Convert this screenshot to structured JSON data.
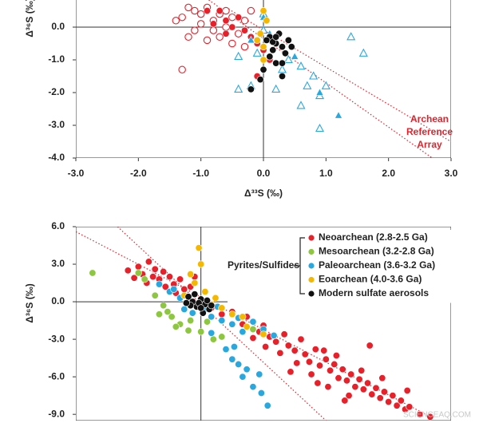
{
  "chart_data": [
    {
      "type": "scatter",
      "x_label": "Δ³³S (‰)",
      "y_label": "Δ³⁶S (‰)",
      "annotation": [
        "Archean",
        "Reference",
        "Array"
      ],
      "xlim": [
        -3.0,
        3.0
      ],
      "ylim": [
        -4.0,
        1.0
      ],
      "xticks": [
        {
          "value": -3,
          "label": "-3.0"
        },
        {
          "value": -2,
          "label": "-2.0"
        },
        {
          "value": -1,
          "label": "-1.0"
        },
        {
          "value": 0,
          "label": "0.0"
        },
        {
          "value": 1,
          "label": "1.0"
        },
        {
          "value": 2,
          "label": "2.0"
        },
        {
          "value": 3,
          "label": "3.0"
        }
      ],
      "yticks": [
        {
          "value": 0,
          "label": "0.0"
        },
        {
          "value": -1,
          "label": "-1.0"
        },
        {
          "value": -2,
          "label": "-2.0"
        },
        {
          "value": -3,
          "label": "-3.0"
        },
        {
          "value": -4,
          "label": "-4.0"
        }
      ],
      "grid": false,
      "zero_axes": true,
      "reference_lines": [
        {
          "color": "#e8202a",
          "x": [
            -1.0,
            2.7
          ],
          "y": [
            1.0,
            -4.0
          ]
        },
        {
          "color": "#e8202a",
          "x": [
            -0.6,
            3.0
          ],
          "y": [
            0.6,
            -3.5
          ]
        }
      ],
      "series": [
        {
          "color": "#e8202a",
          "marker": "circle",
          "filled": false,
          "x": [
            -1.2,
            -1.1,
            -1.3,
            -1.0,
            -0.9,
            -0.8,
            -1.0,
            -0.7,
            -0.6,
            -0.5,
            -0.6,
            -0.8,
            -1.1,
            -1.4,
            -0.3,
            -0.4,
            -0.7,
            -1.3,
            -0.9,
            -0.2,
            -0.5,
            -1.2,
            -0.3
          ],
          "values": [
            0.6,
            0.5,
            0.3,
            0.4,
            0.6,
            0.2,
            0.1,
            0.4,
            0.5,
            0.3,
            0.0,
            -0.1,
            -0.1,
            0.2,
            0.2,
            -0.2,
            -0.3,
            -1.3,
            -0.4,
            0.5,
            -0.5,
            -0.3,
            -0.6
          ]
        },
        {
          "color": "#e8202a",
          "marker": "circle",
          "filled": true,
          "x": [
            -0.9,
            -0.8,
            -0.6,
            -0.5,
            -0.3,
            -0.4,
            -0.2,
            -0.6,
            -0.1,
            -0.7,
            0.0,
            -0.1,
            0.1
          ],
          "values": [
            0.5,
            0.1,
            0.2,
            0.0,
            -0.1,
            0.3,
            -0.3,
            -0.2,
            -0.5,
            0.5,
            -0.7,
            -1.5,
            -1.0
          ]
        },
        {
          "color": "#29a8e0",
          "marker": "triangle",
          "filled": false,
          "x": [
            1.4,
            1.6,
            0.8,
            1.0,
            0.9,
            0.7,
            0.6,
            0.9,
            -0.4,
            -0.2,
            -0.4,
            0.0,
            0.0,
            0.3,
            0.6,
            0.4,
            -0.1,
            0.2
          ],
          "values": [
            -0.3,
            -0.8,
            -1.5,
            -1.8,
            -2.1,
            -1.8,
            -2.4,
            -3.1,
            -1.9,
            -1.8,
            -0.9,
            0.4,
            -0.1,
            -1.3,
            -1.2,
            -1.0,
            -0.8,
            -1.9
          ]
        },
        {
          "color": "#29a8e0",
          "marker": "triangle",
          "filled": true,
          "x": [
            0.0,
            0.1,
            1.2,
            0.9,
            -0.2,
            0.5
          ],
          "values": [
            0.3,
            -0.2,
            -2.7,
            -2.0,
            -0.4,
            -0.9
          ]
        },
        {
          "color": "#f5b800",
          "marker": "circle",
          "filled": true,
          "x": [
            0.0,
            0.05,
            -0.05,
            0.0,
            0.1,
            -0.1,
            0.0
          ],
          "values": [
            0.5,
            0.2,
            -0.2,
            -0.6,
            -0.9,
            -0.4,
            -1.0
          ]
        },
        {
          "color": "#111111",
          "marker": "circle",
          "filled": true,
          "x": [
            0.1,
            0.2,
            0.15,
            0.3,
            0.05,
            0.25,
            0.35,
            0.2,
            0.1,
            0.4,
            0.0,
            0.3,
            -0.05,
            0.15,
            0.45,
            0.2,
            -0.2,
            0.3
          ],
          "values": [
            -0.3,
            -0.5,
            -0.7,
            -0.6,
            -0.4,
            -0.2,
            -0.8,
            -1.1,
            -0.9,
            -0.4,
            -1.3,
            -1.5,
            -1.6,
            -0.45,
            -0.6,
            -0.3,
            -1.9,
            -1.1
          ]
        }
      ]
    },
    {
      "type": "scatter",
      "y_label": "Δ³⁶S (‰)",
      "legend_title": "Pyrites/Sulfides",
      "watermark": "SCIENCEAQ.COM",
      "xlim": [
        -6,
        12
      ],
      "ylim": [
        -9.5,
        6.0
      ],
      "yticks": [
        {
          "value": 6,
          "label": "6.0"
        },
        {
          "value": 3,
          "label": "3.0"
        },
        {
          "value": 0,
          "label": "0.0"
        },
        {
          "value": -3,
          "label": "-3.0"
        },
        {
          "value": -6,
          "label": "-6.0"
        },
        {
          "value": -9,
          "label": "-9.0"
        }
      ],
      "grid": false,
      "zero_axes": true,
      "reference_lines": [
        {
          "color": "#e8202a",
          "x": [
            -6.0,
            10.9
          ],
          "y": [
            5.6,
            -9.1
          ]
        },
        {
          "color": "#e8202a",
          "x": [
            -4.0,
            6.0
          ],
          "y": [
            6.0,
            -9.5
          ]
        }
      ],
      "series": [
        {
          "name": "Neoarchean (2.8-2.5 Ga)",
          "color": "#e8202a",
          "marker": "circle",
          "filled": true,
          "x": [
            -3.5,
            -3.0,
            -2.8,
            -2.5,
            -2.2,
            -2.0,
            -1.8,
            -1.5,
            -1.3,
            -1.0,
            -0.8,
            -0.5,
            -2.6,
            -3.2,
            -1.2,
            -0.3,
            -2.3,
            -1.7,
            0.5,
            1.0,
            1.5,
            2.0,
            2.2,
            2.8,
            3.0,
            3.3,
            3.6,
            4.0,
            4.2,
            4.5,
            4.8,
            5.0,
            5.2,
            5.5,
            5.7,
            6.0,
            6.2,
            6.4,
            6.6,
            6.8,
            7.0,
            7.2,
            7.4,
            7.6,
            7.8,
            8.0,
            8.2,
            8.4,
            8.6,
            8.8,
            9.0,
            9.2,
            9.4,
            9.6,
            9.8,
            10.0,
            5.3,
            6.1,
            7.1,
            4.6,
            3.8,
            5.9,
            8.7,
            10.5,
            9.9,
            6.5,
            7.7,
            4.3,
            3.1,
            2.5,
            8.1,
            11.0,
            6.9,
            5.6
          ],
          "values": [
            2.5,
            2.8,
            2.2,
            3.2,
            2.6,
            1.8,
            2.4,
            2.0,
            1.4,
            1.8,
            1.0,
            1.2,
            1.5,
            1.9,
            0.7,
            2.0,
            2.0,
            1.2,
            -0.5,
            -1.0,
            -0.8,
            -1.8,
            -1.2,
            -2.4,
            -1.9,
            -2.8,
            -3.2,
            -2.6,
            -3.5,
            -3.9,
            -3.0,
            -4.2,
            -4.8,
            -3.8,
            -5.1,
            -4.6,
            -5.5,
            -5.0,
            -6.1,
            -5.4,
            -6.3,
            -5.8,
            -6.8,
            -6.2,
            -7.0,
            -6.5,
            -7.4,
            -6.9,
            -7.7,
            -7.2,
            -8.0,
            -7.5,
            -8.3,
            -7.9,
            -8.6,
            -8.4,
            -5.8,
            -6.8,
            -7.5,
            -4.9,
            -4.1,
            -3.9,
            -6.1,
            -9.0,
            -7.1,
            -4.3,
            -5.5,
            -5.6,
            -3.6,
            -2.9,
            -3.5,
            -9.2,
            -7.9,
            -6.5
          ]
        },
        {
          "name": "Mesoarchean (3.2-2.8 Ga)",
          "color": "#8dc63f",
          "marker": "circle",
          "filled": true,
          "x": [
            -5.2,
            -2.2,
            -1.8,
            -1.4,
            -1.0,
            -0.6,
            -2.0,
            -1.2,
            0.0,
            0.6,
            -0.5,
            1.0,
            -1.6,
            0.3,
            2.5,
            -3.0,
            -2.7
          ],
          "values": [
            2.3,
            0.5,
            -0.3,
            -1.2,
            -1.8,
            -2.3,
            -1.0,
            -2.0,
            -2.4,
            -3.0,
            -1.5,
            -2.8,
            -0.8,
            -1.6,
            -2.2,
            2.3,
            1.8
          ]
        },
        {
          "name": "Paleoarchean (3.6-3.2 Ga)",
          "color": "#29a8e0",
          "marker": "circle",
          "filled": true,
          "x": [
            -2.0,
            -1.5,
            -1.0,
            -0.8,
            -0.4,
            0.2,
            0.5,
            1.0,
            1.5,
            2.0,
            1.8,
            2.5,
            3.0,
            1.2,
            1.5,
            1.8,
            2.0,
            2.2,
            2.5,
            2.8,
            3.2,
            1.6,
            0.8,
            -1.3,
            -0.2,
            3.5,
            0.5,
            2.9
          ],
          "values": [
            1.4,
            0.8,
            0.3,
            -0.6,
            -0.9,
            -0.6,
            -1.2,
            -1.5,
            -1.8,
            -2.4,
            -1.3,
            -1.6,
            -2.2,
            -3.8,
            -4.6,
            -5.0,
            -6.0,
            -5.4,
            -6.8,
            -5.8,
            -8.3,
            -3.6,
            -0.4,
            1.0,
            -0.3,
            -2.7,
            -2.5,
            -7.3
          ]
        },
        {
          "name": "Eoarchean (4.0-3.6 Ga)",
          "color": "#f5b800",
          "marker": "circle",
          "filled": true,
          "x": [
            -0.1,
            0.0,
            -0.5,
            -0.3,
            0.2,
            0.5,
            1.0,
            1.5,
            2.0,
            2.2,
            0.7,
            -0.8,
            3.0
          ],
          "values": [
            4.3,
            3.0,
            2.2,
            1.5,
            0.8,
            -0.2,
            -0.5,
            -1.0,
            -1.2,
            -2.0,
            0.3,
            0.5,
            -2.6
          ]
        },
        {
          "name": "Modern sulfate aerosols",
          "color": "#111111",
          "marker": "circle",
          "filled": true,
          "x": [
            -0.6,
            -0.4,
            -0.2,
            0.0,
            0.2,
            0.4,
            -0.3,
            0.1,
            -0.5,
            0.3,
            -0.1,
            0.5,
            -0.7,
            0.0
          ],
          "values": [
            0.4,
            0.0,
            -0.4,
            0.2,
            -0.2,
            -0.6,
            0.6,
            -0.9,
            -0.3,
            0.1,
            -0.1,
            -0.3,
            -0.1,
            -0.5
          ]
        }
      ]
    }
  ]
}
